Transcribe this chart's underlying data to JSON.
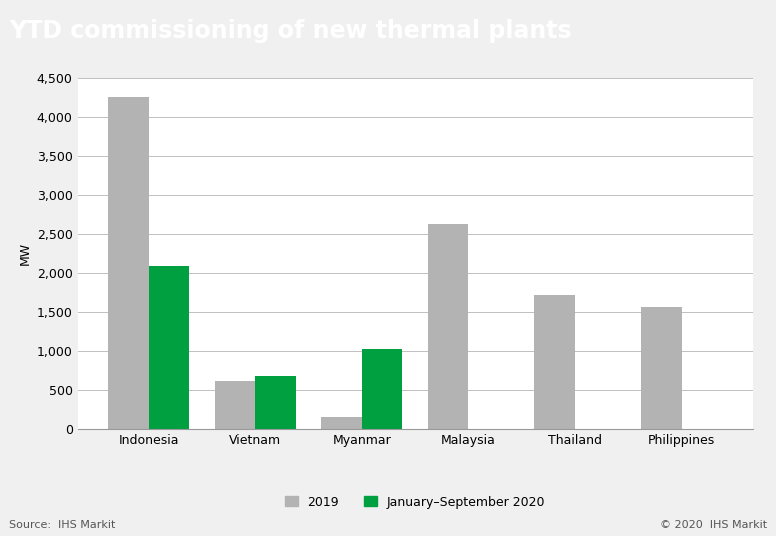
{
  "title": "YTD commissioning of new thermal plants",
  "title_bg_color": "#737373",
  "title_text_color": "#ffffff",
  "categories": [
    "Indonesia",
    "Vietnam",
    "Myanmar",
    "Malaysia",
    "Thailand",
    "Philippines"
  ],
  "values_2019": [
    4250,
    610,
    155,
    2620,
    1710,
    1560
  ],
  "values_2020": [
    2090,
    680,
    1020,
    0,
    0,
    0
  ],
  "color_2019": "#b3b3b3",
  "color_2020": "#00a040",
  "ylabel": "MW",
  "ylim": [
    0,
    4500
  ],
  "yticks": [
    0,
    500,
    1000,
    1500,
    2000,
    2500,
    3000,
    3500,
    4000,
    4500
  ],
  "legend_2019": "2019",
  "legend_2020": "January–September 2020",
  "source_text": "Source:  IHS Markit",
  "copyright_text": "© 2020  IHS Markit",
  "bg_color": "#f0f0f0",
  "plot_bg_color": "#ffffff",
  "grid_color": "#c0c0c0",
  "bar_width": 0.38,
  "title_fontsize": 17,
  "axis_fontsize": 9,
  "legend_fontsize": 9,
  "source_fontsize": 8
}
